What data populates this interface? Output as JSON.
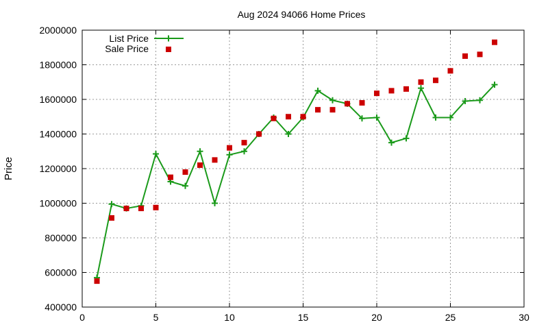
{
  "chart_data": {
    "type": "line",
    "title": "Aug 2024 94066 Home Prices",
    "xlabel": "",
    "ylabel": "Price",
    "xlim": [
      0,
      30
    ],
    "ylim": [
      400000,
      2000000
    ],
    "x_ticks": [
      "0",
      "5",
      "10",
      "15",
      "20",
      "25",
      "30"
    ],
    "y_ticks": [
      "400000",
      "600000",
      "800000",
      "1000000",
      "1200000",
      "1400000",
      "1600000",
      "1800000",
      "2000000"
    ],
    "grid": true,
    "legend_position": "top-left",
    "series": [
      {
        "name": "List Price",
        "style": "line-plus",
        "color": "#1a9a1a",
        "x": [
          1,
          2,
          3,
          4,
          5,
          6,
          7,
          8,
          9,
          10,
          11,
          12,
          13,
          14,
          15,
          16,
          17,
          18,
          19,
          20,
          21,
          22,
          23,
          24,
          25,
          26,
          27,
          28
        ],
        "y": [
          570000,
          995000,
          970000,
          985000,
          1285000,
          1125000,
          1100000,
          1300000,
          1000000,
          1280000,
          1300000,
          1400000,
          1495000,
          1400000,
          1495000,
          1650000,
          1595000,
          1575000,
          1490000,
          1495000,
          1350000,
          1375000,
          1665000,
          1495000,
          1495000,
          1590000,
          1595000,
          1685000
        ]
      },
      {
        "name": "Sale Price",
        "style": "square-marker",
        "color": "#cc0000",
        "x": [
          1,
          2,
          3,
          4,
          5,
          6,
          7,
          8,
          9,
          10,
          11,
          12,
          13,
          14,
          15,
          16,
          17,
          18,
          19,
          20,
          21,
          22,
          23,
          24,
          25,
          26,
          27,
          28
        ],
        "y": [
          550000,
          915000,
          970000,
          970000,
          975000,
          1150000,
          1180000,
          1220000,
          1250000,
          1320000,
          1350000,
          1400000,
          1490000,
          1500000,
          1500000,
          1540000,
          1540000,
          1575000,
          1580000,
          1635000,
          1650000,
          1660000,
          1700000,
          1710000,
          1765000,
          1850000,
          1860000,
          1930000
        ]
      }
    ]
  }
}
